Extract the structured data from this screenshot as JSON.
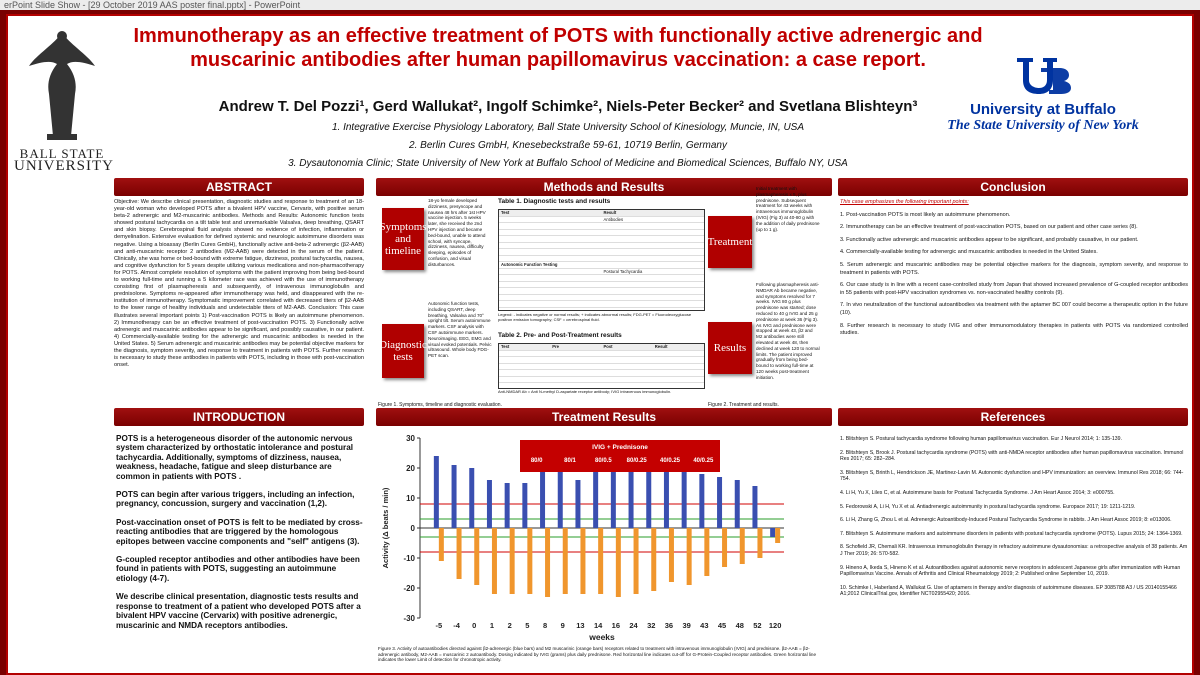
{
  "window": {
    "title": "erPoint Slide Show - [29 October 2019 AAS poster final.pptx] - PowerPoint"
  },
  "poster": {
    "title": "Immunotherapy as an effective treatment of POTS with functionally active adrenergic and muscarinic antibodies after human papillomavirus vaccination: a case report.",
    "authors": "Andrew T. Del Pozzi¹, Gerd Wallukat², Ingolf Schimke², Niels-Peter Becker² and Svetlana Blishteyn³",
    "affiliations": [
      "1. Integrative Exercise Physiology Laboratory, Ball State University School of Kinesiology, Muncie, IN, USA",
      "2. Berlin Cures GmbH, Knesebeckstraße 59-61, 10719 Berlin, Germany",
      "3. Dysautonomia Clinic; State University of New York at Buffalo School of Medicine and Biomedical Sciences, Buffalo NY, USA"
    ],
    "bsu_logo": {
      "line1": "BALL STATE",
      "line2": "UNIVERSITY"
    },
    "ub_logo": {
      "line1": "University at Buffalo",
      "line2": "The State University of New York"
    }
  },
  "abstract": {
    "header": "ABSTRACT",
    "text": "Objective: We describe clinical presentation, diagnostic studies and response to treatment of an 18-year-old woman who developed POTS after a bivalent HPV vaccine, Cervarix, with positive serum beta-2 adrenergic and M2-muscarinic antibodies. Methods and Results: Autonomic function tests showed postural tachycardia on a tilt table test and unremarkable Valsalva, deep breathing, QSART and skin biopsy. Cerebrospinal fluid analysis showed no evidence of infection, inflammation or demyelination. Extensive evaluation for defined systemic and neurologic autoimmune disorders was negative. Using a bioassay (Berlin Cures GmbH), functionally active anti-beta-2 adrenergic (β2-AAB) and anti-muscarinic receptor 2 antibodies (M2-AAB) were detected in the serum of the patient. Clinically, she was home or bed-bound with extreme fatigue, dizziness, postural tachycardia, nausea, and cognitive dysfunction for 5 years despite utilizing various medications and non-pharmacotherapy for POTS. Almost complete resolution of symptoms with the patient improving from being bed-bound to working full-time and running a 5 kilometer race was achieved with the use of immunotherapy consisting first of plasmapheresis and subsequently, of intravenous immunoglobulin and prednisolone. Symptoms re-appeared after immunotherapy was held, and disappeared with the re-institution of immunotherapy. Symptomatic improvement correlated with decreased titers of β2-AAB to the lower range of healthy individuals and undetectable titers of M2-AAB. Conclusion: This case illustrates several important points 1) Post-vaccination POTS is likely an autoimmune phenomenon. 2) Immunotherapy can be an effective treatment of post-vaccination POTS. 3) Functionally active adrenergic and muscarinic antibodies appear to be significant, and possibly causative, in our patient. 4) Commercially-available testing for the adrenergic and muscarinic antibodies is needed in the United States. 5) Serum adrenergic and muscarinic antibodies may be potential objective markers for the diagnosis, symptom severity, and response to treatment in patients with POTS. Further research is necessary to study these antibodies in patients with POTS, including in those with post-vaccination onset."
  },
  "methods": {
    "header": "Methods and Results",
    "box_symptoms": "Symptoms and timeline",
    "box_diagnostic": "Diagnostic tests",
    "box_treatment": "Treatment",
    "box_results": "Results",
    "symptoms_bullets": "18-yo female developed dizziness, presyncope and nausea 48 hrs after 1st HPV vaccine injection. 5 weeks later, she received the 2nd HPV injection and became bed-bound, unable to attend school, with syncope, dizziness, nausea, difficulty sleeping, episodes of confusion, and visual disturbances.",
    "diagnostic_bullets": "Autonomic function tests, including QSART, deep breathing, Valsalva and 70° upright tilt. Serum autoimmune markers. CSF analysis with CSF autoimmune markers. Neuroimaging. EEG, EMG and visual evoked potentials. Pelvic ultrasound. Whole body FDG-PET scan.",
    "treatment_bullets": "Initial treatment with plasmapheresis x 5, plus prednisone. Subsequent treatment for 43 weeks with intravenous immunoglobulin (IVIG) (Fig 3) at 40-80 g with the addition of daily prednisone (up to 1 g).",
    "results_bullets": "Following plasmapheresis anti-NMDAR Ab became negative, and symptoms resolved for 7 weeks. IVIG 80 g plus prednisone was started; dose reduced to 40 g IVIG and 25 g prednisone at week 36 (Fig 3). As IVIG and prednisone were stopped at week 43, β2 and M2 antibodies were still elevated at week 48, then declined at week 120 to normal limits. The patient improved gradually from being bed-bound to working full-time at 120 weeks post-treatment initiation.",
    "table1_title": "Table 1. Diagnostic tests and results",
    "table1_header": [
      "Test",
      "Result"
    ],
    "table1_col2": "Antibodies",
    "table1_section": "Autonomic Function Testing",
    "table1_section2": "Postural Tachycardia",
    "table2_title": "Table 2. Pre- and Post-Treatment results",
    "table2_header": [
      "Test",
      "Pre",
      "Post",
      "Result"
    ],
    "table1_legend": "Legend: - indicates negative or normal results; + indicates abnormal results; FDG-PET = Fluorodeoxyglucose positron emission tomography; CSF = cerebrospinal fluid.",
    "table2_legend": "Anti-NMDAR Ab = Anti N-methyl D-aspartate receptor antibody; IVIG intravenous immunoglobulin.",
    "fig1_caption": "Figure 1. Symptoms, timeline and diagnostic evaluation.",
    "fig2_caption": "Figure 2. Treatment and results."
  },
  "conclusion": {
    "header": "Conclusion",
    "lead": "This case emphasizes the following important points:",
    "points": [
      "1. Post-vaccination POTS is most likely an autoimmune phenomenon.",
      "2. Immunotherapy can be an effective treatment of post-vaccination POTS, based on our patient and other case series (8).",
      "3. Functionally active adrenergic and muscarinic antibodies appear to be significant, and probably causative, in our patient.",
      "4. Commercially-available testing for adrenergic and muscarinic antibodies is needed in the United States.",
      "5. Serum adrenergic and muscarinic antibodies may be potential objective markers for the diagnosis, symptom severity, and response to treatment in patients with POTS.",
      "6. Our case study is in line with a recent case-controlled study from Japan that showed increased prevalence of G-coupled receptor antibodies in 55 patients with post-HPV vaccination syndromes vs. non-vaccinated healthy controls (9).",
      "7. In vivo neutralization of the functional autoantibodies via treatment with the aptamer BC 007 could become a therapeutic option in the future (10).",
      "8. Further research is necessary to study IVIG and other immunomodulatory therapies in patients with POTS via randomized controlled studies."
    ]
  },
  "introduction": {
    "header": "INTRODUCTION",
    "paragraphs": [
      "POTS is a heterogeneous disorder of the autonomic nervous system characterized by orthostatic intolerance and postural tachycardia. Additionally, symptoms of dizziness, nausea, weakness, headache, fatigue and sleep disturbance are common in patients with POTS .",
      "POTS can begin after various triggers, including an infection, pregnancy, concussion, surgery and vaccination (1,2).",
      "Post-vaccination onset of POTS is felt to be mediated by cross-reacting antibodies that are triggered by the homologous epitopes between vaccine components and \"self\" antigens (3).",
      "G-coupled receptor antibodies and other antibodies have been found in patients with POTS, suggesting an autoimmune etiology (4-7).",
      "We describe clinical presentation, diagnostic tests results and response to treatment of a patient who developed POTS after a bivalent HPV vaccine (Cervarix) with positive adrenergic, muscarinic and NMDA receptors antibodies."
    ]
  },
  "treatment_results": {
    "header": "Treatment Results",
    "caption": "Figure 3. Activity of autoantibodies directed against β2-adrenergic (blue bars) and M2 muscarinic (orange bars) receptors related to treatment with intravenous immunoglobulin (IVIG) and prednisone. β2-AAB = β2-adrenergic antibody, M2-AAB = muscarinic 2 autoantibody. Dosing indicated by IVIG (grams) plus daily prednisone. Red horizontal line indicates cut-off for G-Protein-Coupled receptor antibodies. Green horizontal line indicates the lower Limit of detection for chronotropic activity."
  },
  "chart_data": {
    "type": "bar",
    "title": "",
    "xlabel": "weeks",
    "ylabel": "Activity (Δ beats / min)",
    "ylim": [
      -30,
      30
    ],
    "yticks": [
      30,
      20,
      10,
      0,
      -10,
      -20,
      -30
    ],
    "categories": [
      "-5",
      "-4",
      "0",
      "1",
      "2",
      "5",
      "8",
      "9",
      "13",
      "14",
      "16",
      "24",
      "32",
      "36",
      "39",
      "43",
      "45",
      "48",
      "52",
      "120"
    ],
    "series": [
      {
        "name": "β2-AAB",
        "color": "#3a4fb0",
        "values": [
          24,
          21,
          20,
          16,
          15,
          15,
          24,
          22,
          16,
          20,
          21,
          21,
          21,
          22,
          19,
          18,
          17,
          16,
          14,
          -3
        ]
      },
      {
        "name": "M2-AAB",
        "color": "#f0962d",
        "values": [
          -11,
          -17,
          -19,
          -22,
          -22,
          -22,
          -23,
          -22,
          -22,
          -22,
          -23,
          -22,
          -21,
          -18,
          -19,
          -16,
          -13,
          -12,
          -10,
          -5
        ]
      }
    ],
    "red_lines": [
      8,
      -8
    ],
    "green_lines": [
      3,
      -3
    ],
    "annotation_header": "IVIG + Prednisone",
    "annotations": [
      "80/0",
      "80/1",
      "80/0.5",
      "80/0.25",
      "40/0.25",
      "40/0.25"
    ]
  },
  "references": {
    "header": "References",
    "items": [
      "1.   Blitshteyn S. Postural tachycardia syndrome following human papillomavirus vaccination. Eur J Neurol 2014; 1: 135-139.",
      "2.   Blitshteyn S, Brook J. Postural tachycardia syndrome (POTS) with anti-NMDA receptor antibodies after human papillomavirus vaccination. Immunol Res 2017; 65: 282–284.",
      "3.   Blitshteyn S, Brinth L, Hendrickson JE, Martinez-Lavin M. Autonomic dysfunction and HPV immunization: an overview. Immunol Res 2018; 66: 744-754.",
      "4.   Li H, Yu X, Liles C,  et al. Autoimmune basis for Postural Tachycardia Syndrome. J Am Heart Assoc 2014; 3: e000755.",
      "5.   Fedorowski A, Li H, Yu X et al. Antiadrenergic autoimmunity in postural tachycardia syndrome. Europace 2017; 19: 1211-1219.",
      "6.   Li H, Zhang G, Zhou L et al. Adrenergic Autoantibody-Induced Postural Tachycardia Syndrome in rabbits. J Am Heart Assoc 2019; 8: e013006.",
      "7.   Blitshteyn S. Autoimmune markers and autoimmune disorders in patients with postural tachycardia syndrome (POTS).  Lupus 2015; 24: 1364-1369.",
      "8.   Schofield JR, Chemali KR. Intravenous immunoglobulin therapy in refractory autoimmune dysautonomias: a retrospective analysis of 38 patients. Am J Ther 2019; 26: 570-582.",
      "9.   Hineno A, Ikeda S, Hineno K et al. Autoantibodies against autonomic nerve receptors in adolescent Japanese girls after immunization with Human Papillomavirus Vaccine. Annals of Arthritis and Clinical Rheumatology 2019; 2: Published online September 10, 2019.",
      "10.  Schimke I, Haberland A, Wallukat G. Use of aptamers in therapy and/or diagnosis of autoimmune diseases. EP 3085788 A3 / US 20140155466 A1;2012 ClinicalTrial.gov, Identifier NCT02955420; 2016."
    ]
  }
}
